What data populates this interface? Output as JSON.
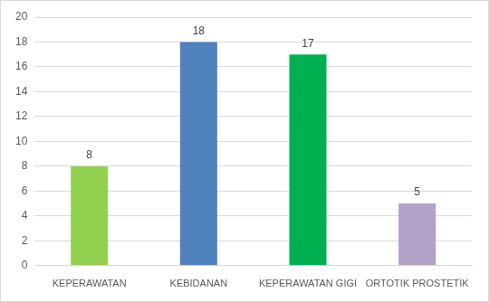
{
  "chart_data": {
    "type": "bar",
    "categories": [
      "KEPERAWATAN",
      "KEBIDANAN",
      "KEPERAWATAN GIGI",
      "ORTOTIK PROSTETIK"
    ],
    "values": [
      8,
      18,
      17,
      5
    ],
    "colors": [
      "#92d050",
      "#4f81bd",
      "#00b050",
      "#b3a2c7"
    ],
    "ylim": [
      0,
      20
    ],
    "yticks": [
      0,
      2,
      4,
      6,
      8,
      10,
      12,
      14,
      16,
      18,
      20
    ],
    "grid": true,
    "data_labels": true
  }
}
